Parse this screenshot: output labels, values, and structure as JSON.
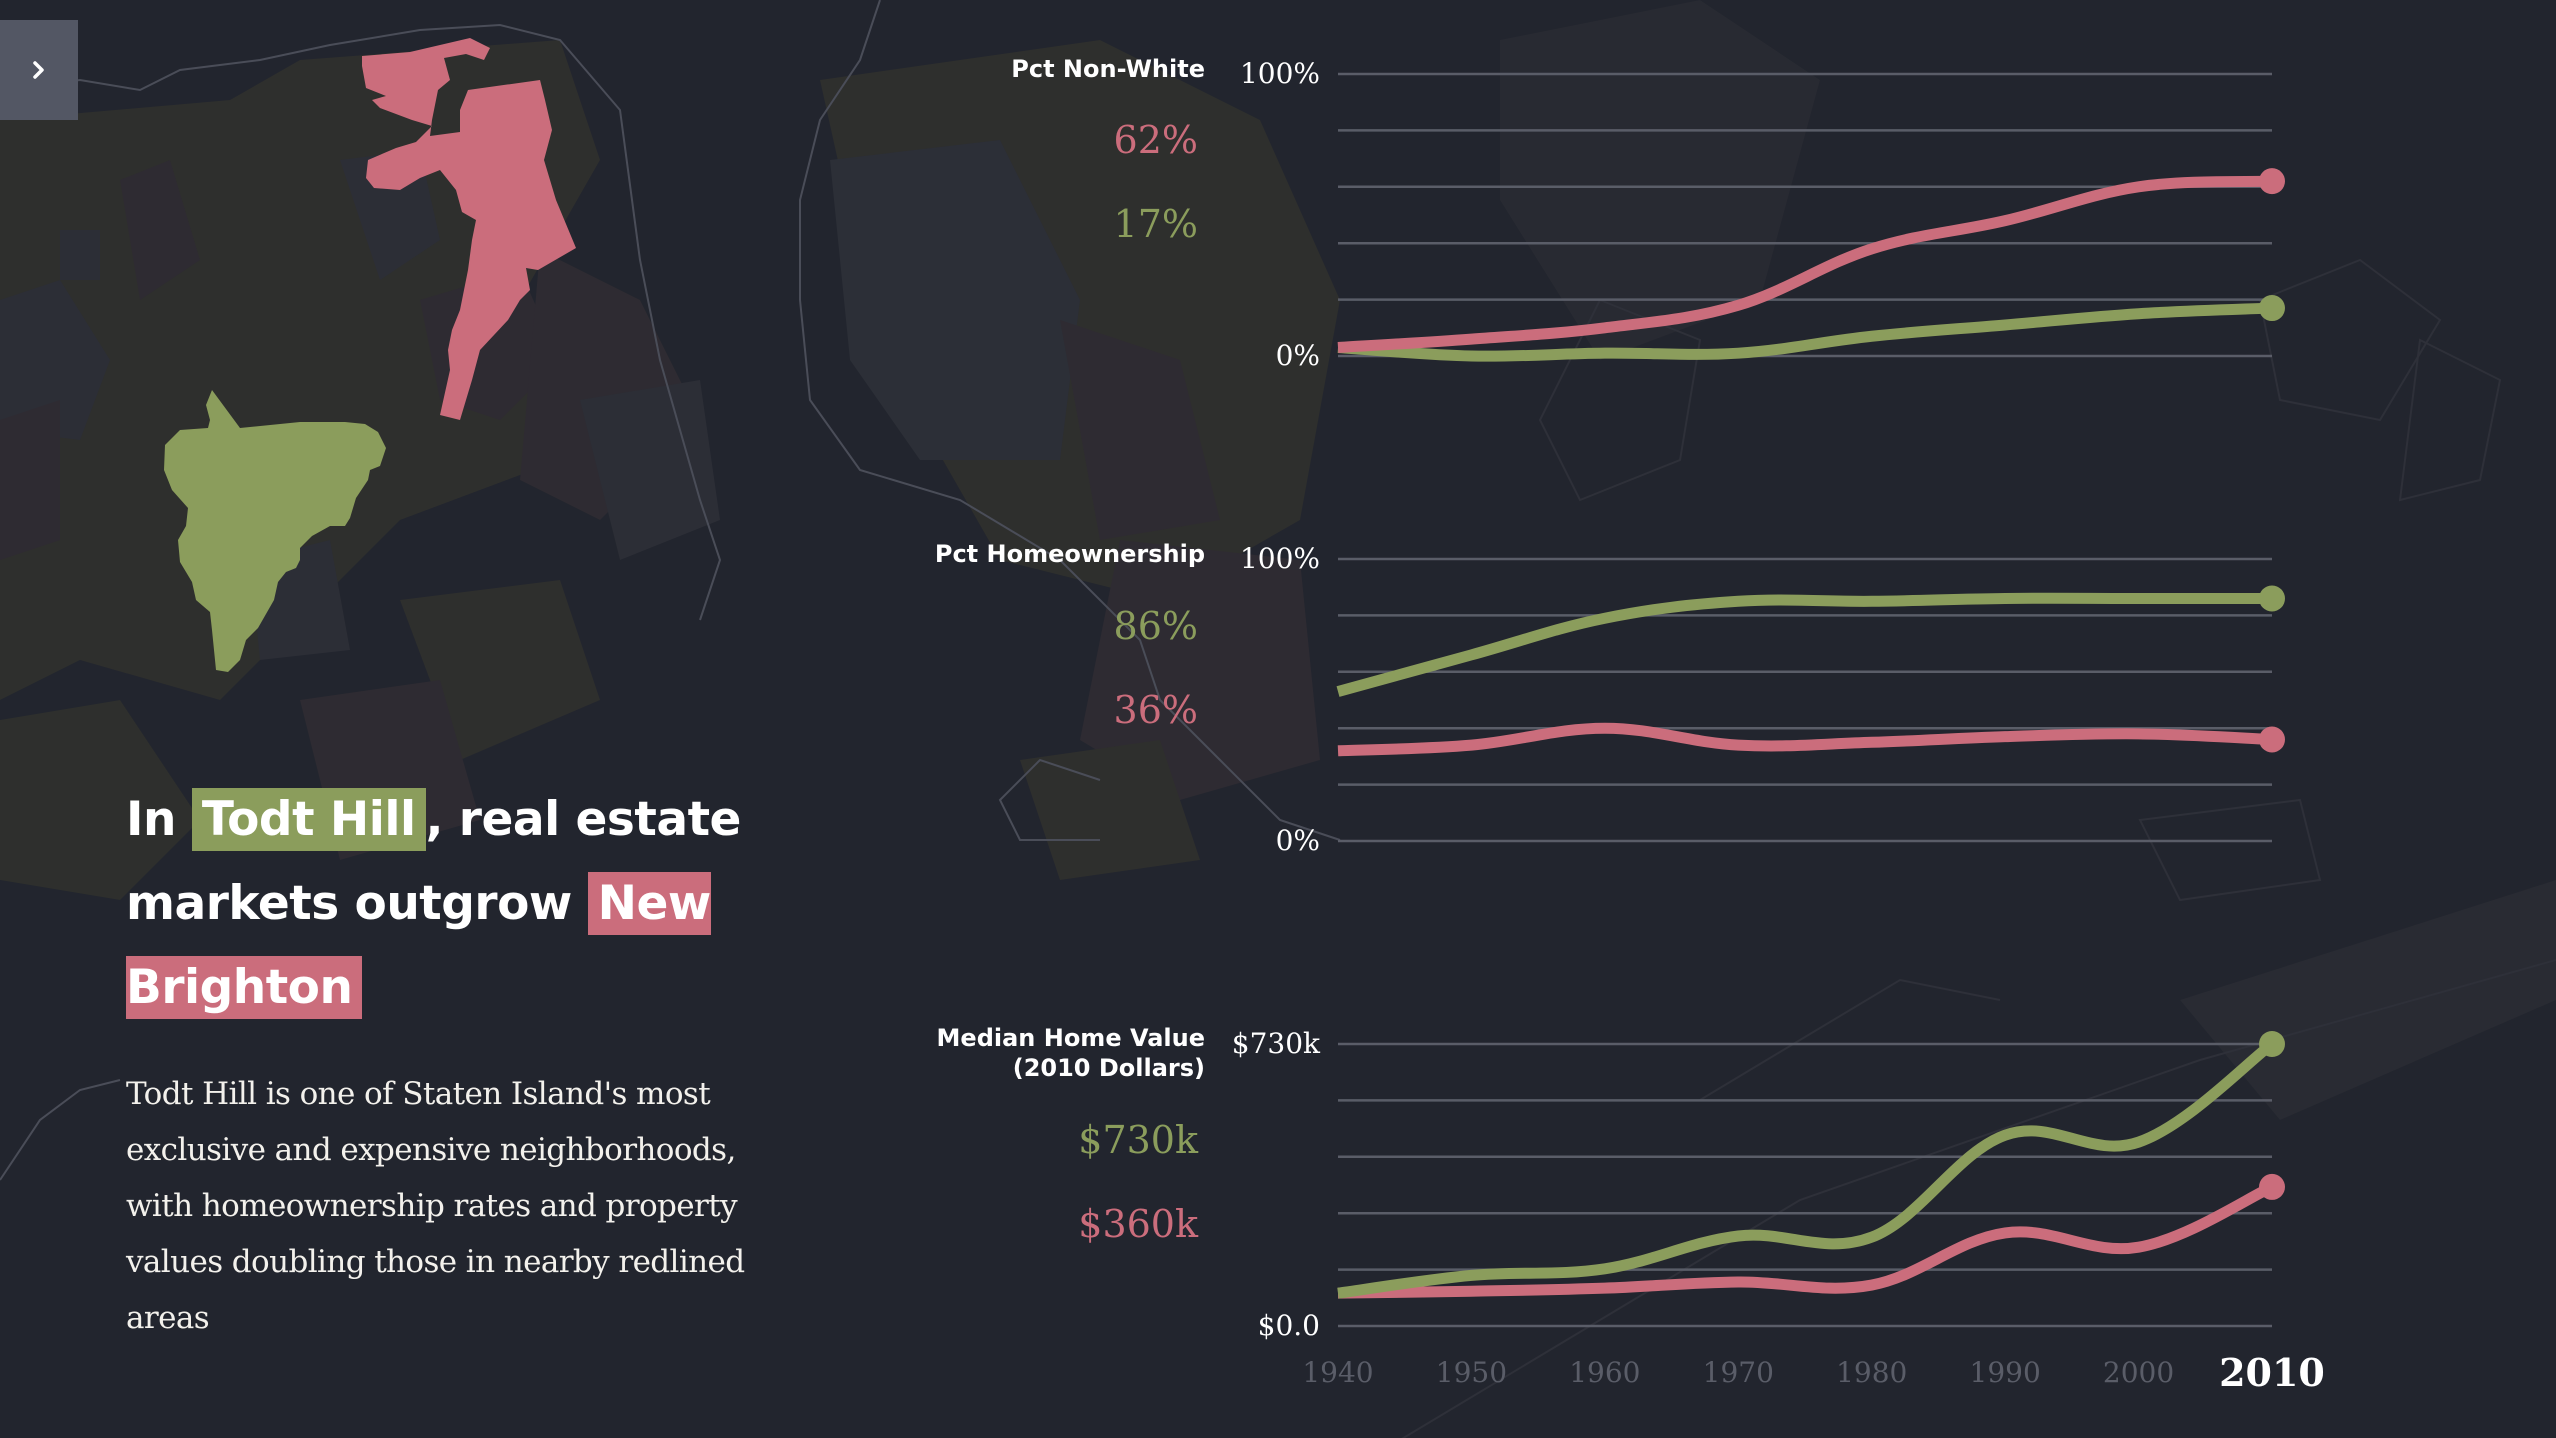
{
  "colors": {
    "background": "#22252e",
    "todt_hill": "#8b9d5c",
    "new_brighton": "#cb6d7c",
    "grid": "#5a5d68",
    "toggle_bg": "#535764"
  },
  "sidebar_toggle": {
    "icon": "chevron-right-icon"
  },
  "headline": {
    "prefix": "In",
    "neighborhood_a": "Todt Hill",
    "middle": ", real estate markets outgrow",
    "neighborhood_b": "New Brighton"
  },
  "paragraph": "Todt Hill is one of Staten Island's most exclusive and expensive neighborhoods, with homeownership rates and property values doubling those in nearby redlined areas",
  "x_ticks": [
    "1940",
    "1950",
    "1960",
    "1970",
    "1980",
    "1990",
    "2000",
    "2010"
  ],
  "active_year": "2010",
  "chart_data": [
    {
      "type": "line",
      "title": "Pct Non-White",
      "x": [
        1940,
        1950,
        1960,
        1970,
        1980,
        1990,
        2000,
        2010
      ],
      "ylim": [
        0,
        100
      ],
      "y_tick_labels": [
        "100%",
        "0%"
      ],
      "gridlines": 6,
      "current_values": {
        "New Brighton": "62%",
        "Todt Hill": "17%"
      },
      "series": [
        {
          "name": "New Brighton",
          "color": "#cb6d7c",
          "values": [
            3,
            6,
            10,
            18,
            38,
            48,
            60,
            62
          ]
        },
        {
          "name": "Todt Hill",
          "color": "#8b9d5c",
          "values": [
            3,
            0,
            1,
            1,
            7,
            11,
            15,
            17
          ]
        }
      ],
      "value_order": [
        "New Brighton",
        "Todt Hill"
      ]
    },
    {
      "type": "line",
      "title": "Pct Homeownership",
      "x": [
        1940,
        1950,
        1960,
        1970,
        1980,
        1990,
        2000,
        2010
      ],
      "ylim": [
        0,
        100
      ],
      "y_tick_labels": [
        "100%",
        "0%"
      ],
      "gridlines": 6,
      "current_values": {
        "Todt Hill": "86%",
        "New Brighton": "36%"
      },
      "series": [
        {
          "name": "Todt Hill",
          "color": "#8b9d5c",
          "values": [
            53,
            66,
            79,
            85,
            85,
            86,
            86,
            86
          ]
        },
        {
          "name": "New Brighton",
          "color": "#cb6d7c",
          "values": [
            32,
            34,
            40,
            34,
            35,
            37,
            38,
            36
          ]
        }
      ],
      "value_order": [
        "Todt Hill",
        "New Brighton"
      ]
    },
    {
      "type": "line",
      "title": "Median Home Value",
      "subtitle": "(2010 Dollars)",
      "x": [
        1940,
        1950,
        1960,
        1970,
        1980,
        1990,
        2000,
        2010
      ],
      "ylim": [
        0,
        730000
      ],
      "y_tick_labels": [
        "$730k",
        "$0.0"
      ],
      "gridlines": 6,
      "current_values": {
        "Todt Hill": "$730k",
        "New Brighton": "$360k"
      },
      "series": [
        {
          "name": "Todt Hill",
          "color": "#8b9d5c",
          "values": [
            85000,
            131000,
            148000,
            233000,
            230000,
            494000,
            476000,
            730000
          ]
        },
        {
          "name": "New Brighton",
          "color": "#cb6d7c",
          "values": [
            85000,
            90000,
            98000,
            114000,
            106000,
            241000,
            204000,
            360000
          ]
        }
      ],
      "value_order": [
        "Todt Hill",
        "New Brighton"
      ]
    }
  ]
}
